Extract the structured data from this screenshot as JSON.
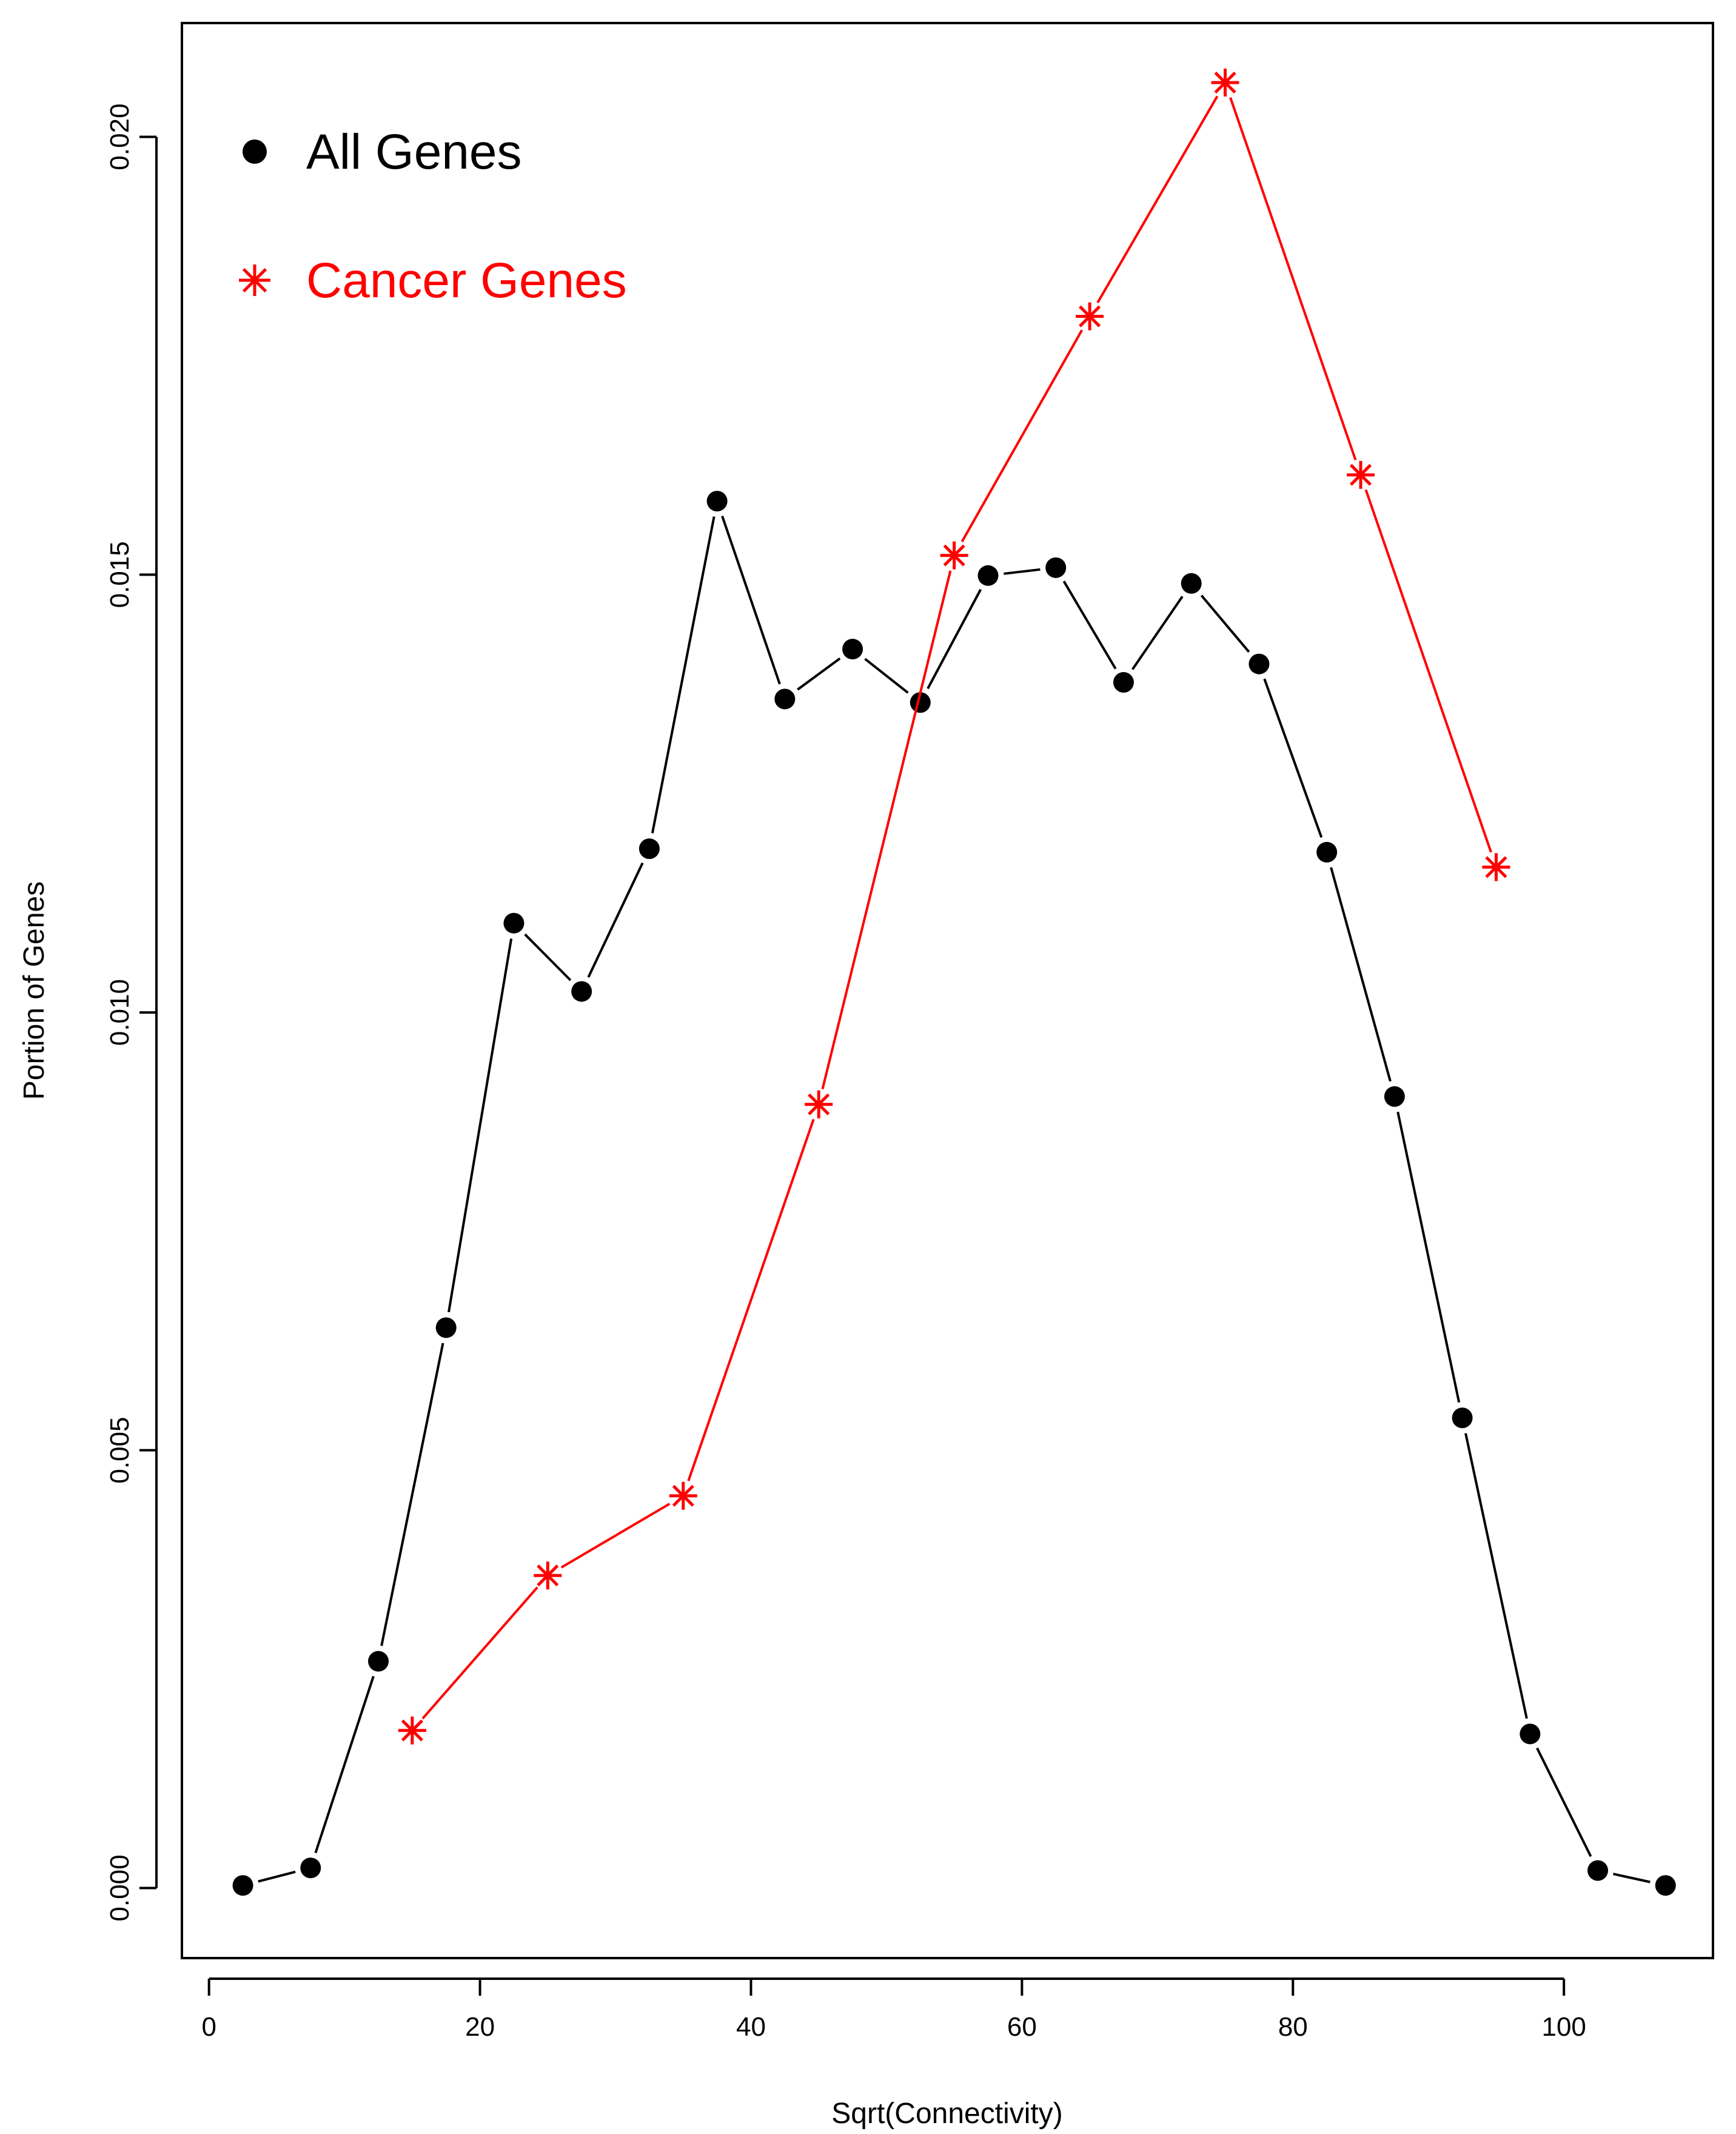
{
  "chart_data": {
    "type": "line",
    "title": "",
    "xlabel": "Sqrt(Connectivity)",
    "ylabel": "Portion of Genes",
    "xlim": [
      -2,
      111
    ],
    "ylim": [
      -0.0008,
      0.0213
    ],
    "xticks": [
      0,
      20,
      40,
      60,
      80,
      100
    ],
    "yticks": [
      0.0,
      0.005,
      0.01,
      0.015,
      0.02
    ],
    "ytick_labels": [
      "0.000",
      "0.005",
      "0.010",
      "0.015",
      "0.020"
    ],
    "grid": false,
    "legend_position": "top-left",
    "series": [
      {
        "name": "All Genes",
        "color": "#000000",
        "marker": "filled-circle",
        "x": [
          2.5,
          7.5,
          12.5,
          17.5,
          22.5,
          27.5,
          32.5,
          37.5,
          42.5,
          47.5,
          52.5,
          57.5,
          62.5,
          67.5,
          72.5,
          77.5,
          82.5,
          87.5,
          92.5,
          97.5,
          102.5,
          107.5
        ],
        "y": [
          3e-05,
          0.00023,
          0.00259,
          0.0064,
          0.01102,
          0.01024,
          0.01187,
          0.01584,
          0.01358,
          0.01415,
          0.01354,
          0.01499,
          0.01508,
          0.01377,
          0.0149,
          0.01398,
          0.01183,
          0.00904,
          0.00537,
          0.00176,
          0.0002,
          3e-05
        ]
      },
      {
        "name": "Cancer Genes",
        "color": "#ff0000",
        "marker": "asterisk",
        "x": [
          15,
          25,
          35,
          45,
          55,
          65,
          75,
          85,
          95
        ],
        "y": [
          0.0018,
          0.00357,
          0.00448,
          0.00895,
          0.01522,
          0.01795,
          0.02062,
          0.01614,
          0.01166
        ]
      }
    ]
  }
}
